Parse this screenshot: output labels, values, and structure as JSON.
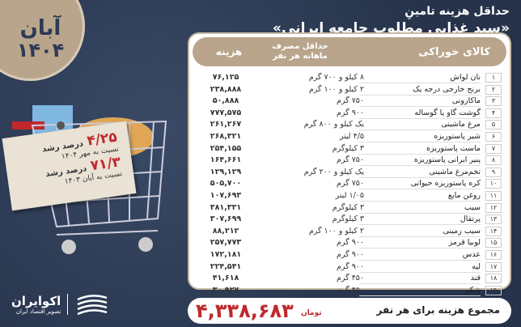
{
  "badge": {
    "month": "آبان",
    "year": "۱۴۰۴"
  },
  "title": {
    "line1": "حداقل هزینه تامینِ",
    "line2": "«سبد غذایی مطلوب جامعه ایرانی»"
  },
  "table": {
    "headers": {
      "item": "کالای خوراکی",
      "qty": "حداقل مصرف ماهانه هر نفر",
      "cost": "هزینه"
    },
    "rows": [
      {
        "n": "۱",
        "name": "نان لواش",
        "qty": "۸ کیلو و ۷۰۰ گرم",
        "cost": "۷۶,۱۲۵"
      },
      {
        "n": "۲",
        "name": "برنج خارجی درجه یک",
        "qty": "۲ کیلو و ۱۰۰ گرم",
        "cost": "۲۳۸,۸۸۸"
      },
      {
        "n": "۳",
        "name": "ماکارونی",
        "qty": "۷۵۰ گرم",
        "cost": "۵۰,۸۸۸"
      },
      {
        "n": "۴",
        "name": "گوشت گاو یا گوساله",
        "qty": "۹۰۰ گرم",
        "cost": "۷۷۷,۵۷۵"
      },
      {
        "n": "۵",
        "name": "مرغ ماشینی",
        "qty": "یک کیلو و ۸۰۰ گرم",
        "cost": "۲۶۱,۲۶۷"
      },
      {
        "n": "۶",
        "name": "شیر پاستوریزه",
        "qty": "۴/۵ لیتر",
        "cost": "۲۶۸,۳۲۱"
      },
      {
        "n": "۷",
        "name": "ماست پاستوریزه",
        "qty": "۳ کیلوگرم",
        "cost": "۲۵۴,۱۵۵"
      },
      {
        "n": "۸",
        "name": "پنیر ایرانی پاستوریزه",
        "qty": "۷۵۰ گرم",
        "cost": "۱۶۴,۶۶۱"
      },
      {
        "n": "۹",
        "name": "تخم‌مرغ ماشینی",
        "qty": "یک کیلو و ۲۰۰ گرم",
        "cost": "۱۲۹,۱۲۹"
      },
      {
        "n": "۱۰",
        "name": "کره پاستوریزه حیوانی",
        "qty": "۷۵۰ گرم",
        "cost": "۵۰۵,۷۰۰"
      },
      {
        "n": "۱۱",
        "name": "روغن مایع",
        "qty": "۱/۰۵ لیتر",
        "cost": "۱۰۷,۶۹۳"
      },
      {
        "n": "۱۲",
        "name": "سیب",
        "qty": "۳ کیلوگرم",
        "cost": "۳۸۱,۳۳۱"
      },
      {
        "n": "۱۳",
        "name": "پرتقال",
        "qty": "۳ کیلوگرم",
        "cost": "۳۰۷,۶۹۹"
      },
      {
        "n": "۱۴",
        "name": "سیب زمینی",
        "qty": "۲ کیلو و ۱۰۰ گرم",
        "cost": "۸۸,۲۱۲"
      },
      {
        "n": "۱۵",
        "name": "لوبیا قرمز",
        "qty": "۹۰۰ گرم",
        "cost": "۲۵۷,۷۷۳"
      },
      {
        "n": "۱۶",
        "name": "عدس",
        "qty": "۹۰۰ گرم",
        "cost": "۱۷۲,۱۸۱"
      },
      {
        "n": "۱۷",
        "name": "لپه",
        "qty": "۹۰۰ گرم",
        "cost": "۲۲۴,۵۴۱"
      },
      {
        "n": "۱۸",
        "name": "قند",
        "qty": "۴۵۰ گرم",
        "cost": "۴۱,۶۱۸"
      },
      {
        "n": "۱۹",
        "name": "شکر",
        "qty": "۴۵۰ گرم",
        "cost": "۳۰,۹۲۷"
      }
    ]
  },
  "note": {
    "growth1": "۴/۲۵",
    "growth1_label": "درصد رشد",
    "growth1_sub": "نسبت به مهر ۱۴۰۴",
    "growth2": "۷۱/۳",
    "growth2_label": "درصد رشد",
    "growth2_sub": "نسبت به آبان ۱۴۰۳"
  },
  "total": {
    "label": "مجموع هزینه برای هر نفر",
    "currency": "تومان",
    "value": "۴,۳۳۸,۶۸۳"
  },
  "logo": {
    "name": "اکوایران",
    "tagline": "تصویر اقتصاد ایران"
  },
  "colors": {
    "background": "#2c3a54",
    "accent": "#c0282c",
    "header": "#b9a58c"
  }
}
